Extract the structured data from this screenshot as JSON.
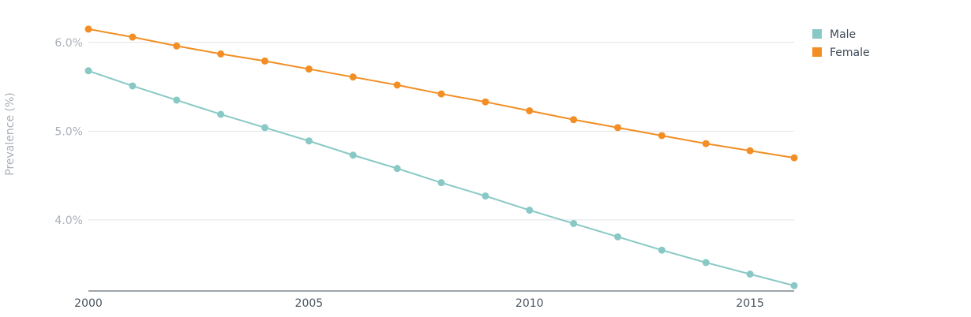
{
  "chart_data": {
    "type": "line",
    "ylabel": "Prevalence (%)",
    "xlabel": "",
    "x": [
      2000,
      2001,
      2002,
      2003,
      2004,
      2005,
      2006,
      2007,
      2008,
      2009,
      2010,
      2011,
      2012,
      2013,
      2014,
      2015,
      2016
    ],
    "xlim": [
      2000,
      2016
    ],
    "ylim": [
      3.2,
      6.3
    ],
    "x_ticks": [
      2000,
      2005,
      2010,
      2015
    ],
    "x_tick_labels": [
      "2000",
      "2005",
      "2010",
      "2015"
    ],
    "y_ticks": [
      4.0,
      5.0,
      6.0
    ],
    "y_tick_labels": [
      "4.0%",
      "5.0%",
      "6.0%"
    ],
    "grid": true,
    "legend_position": "top-right",
    "series": [
      {
        "name": "Male",
        "color": "#88c9c6",
        "values": [
          5.68,
          5.51,
          5.35,
          5.19,
          5.04,
          4.89,
          4.73,
          4.58,
          4.42,
          4.27,
          4.11,
          3.96,
          3.81,
          3.66,
          3.52,
          3.39,
          3.26
        ]
      },
      {
        "name": "Female",
        "color": "#f28e24",
        "values": [
          6.15,
          6.06,
          5.96,
          5.87,
          5.79,
          5.7,
          5.61,
          5.52,
          5.42,
          5.33,
          5.23,
          5.13,
          5.04,
          4.95,
          4.86,
          4.78,
          4.7
        ]
      }
    ]
  }
}
